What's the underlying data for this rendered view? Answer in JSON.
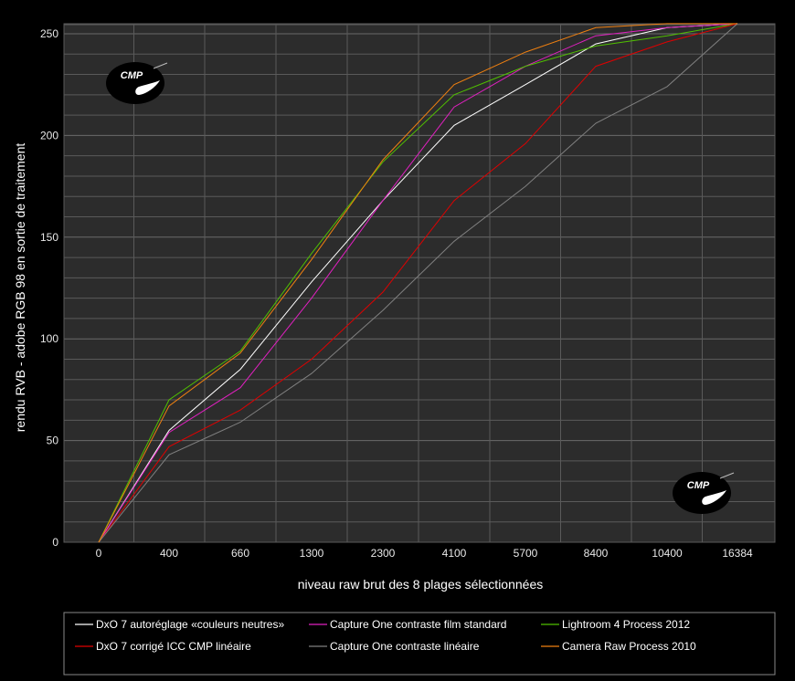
{
  "logo": {
    "text": "CMP"
  },
  "chart_data": {
    "type": "line",
    "title": "",
    "xlabel": "niveau raw brut des 8 plages sélectionnées",
    "ylabel": "rendu RVB - adobe RGB 98 en sortie de traitement",
    "categories": [
      "0",
      "400",
      "660",
      "1300",
      "2300",
      "4100",
      "5700",
      "8400",
      "10400",
      "16384"
    ],
    "ylim": [
      0,
      255
    ],
    "yticks": [
      0,
      50,
      100,
      150,
      200,
      250
    ],
    "grid": true,
    "legend_position": "bottom",
    "series": [
      {
        "name": "DxO 7 autoréglage «couleurs neutres»",
        "color": "#ffffff",
        "values": [
          0,
          55,
          85,
          128,
          168,
          205,
          225,
          245,
          253,
          255
        ]
      },
      {
        "name": "Capture One contraste film standard",
        "color": "#e020c0",
        "values": [
          0,
          54,
          76,
          120,
          168,
          214,
          234,
          249,
          253,
          255
        ]
      },
      {
        "name": "Lightroom 4 Process 2012",
        "color": "#50c000",
        "values": [
          0,
          70,
          94,
          142,
          187,
          220,
          234,
          244,
          249,
          255
        ]
      },
      {
        "name": "DxO 7 corrigé ICC CMP linéaire",
        "color": "#e00000",
        "values": [
          0,
          47,
          65,
          90,
          123,
          168,
          196,
          234,
          246,
          255
        ]
      },
      {
        "name": "Capture One contraste linéaire",
        "color": "#808080",
        "values": [
          0,
          43,
          59,
          83,
          114,
          148,
          175,
          206,
          224,
          255
        ]
      },
      {
        "name": "Camera Raw Process 2010",
        "color": "#f08010",
        "values": [
          0,
          67,
          93,
          139,
          188,
          225,
          241,
          253,
          255,
          255
        ]
      }
    ]
  }
}
